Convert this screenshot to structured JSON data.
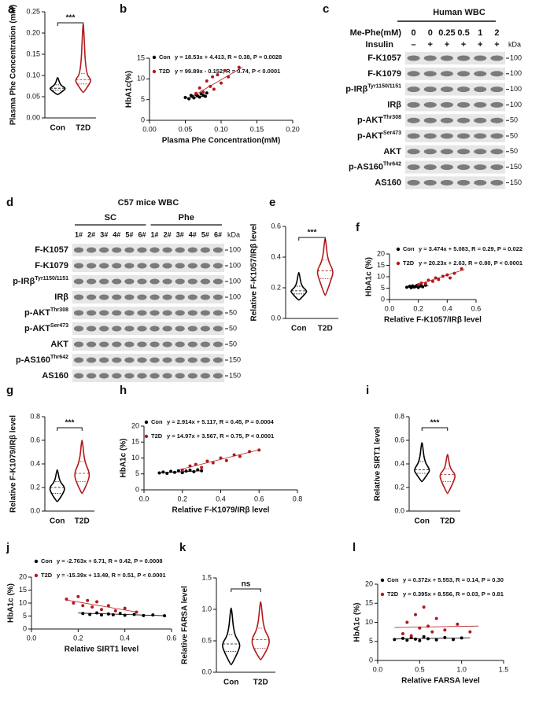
{
  "chart_data": [
    {
      "label": "a",
      "type": "violin",
      "ylabel": "Plasma Phe Concentration (mM)",
      "categories": [
        "Con",
        "T2D"
      ],
      "colors": [
        "#000000",
        "#b3191c"
      ],
      "annotation": "***",
      "ylim": [
        0,
        0.25
      ],
      "yticks": [
        {
          "value": 0,
          "label": "0.00"
        },
        {
          "value": 0.05,
          "label": "0.05"
        },
        {
          "value": 0.1,
          "label": "0.10"
        },
        {
          "value": 0.15,
          "label": "0.15"
        },
        {
          "value": 0.2,
          "label": "0.20"
        },
        {
          "value": 0.25,
          "label": "0.25"
        }
      ],
      "stats": [
        {
          "min": 0.055,
          "q1": 0.065,
          "median": 0.07,
          "q3": 0.078,
          "max": 0.095
        },
        {
          "min": 0.06,
          "q1": 0.08,
          "median": 0.09,
          "q3": 0.105,
          "max": 0.22
        }
      ]
    },
    {
      "label": "b",
      "type": "scatter",
      "xlabel": "Plasma Phe Concentration(mM)",
      "ylabel": "HbA1c(%)",
      "xlim": [
        0,
        0.2
      ],
      "xticks": [
        {
          "value": 0,
          "label": "0.00"
        },
        {
          "value": 0.05,
          "label": "0.05"
        },
        {
          "value": 0.1,
          "label": "0.10"
        },
        {
          "value": 0.15,
          "label": "0.15"
        },
        {
          "value": 0.2,
          "label": "0.20"
        }
      ],
      "ylim": [
        0,
        15
      ],
      "yticks": [
        0,
        5,
        10,
        15
      ],
      "series": [
        {
          "name": "Con",
          "color": "#000000",
          "equation": "y = 18.53x + 4.413, R = 0.38, P = 0.0028",
          "x": [
            0.05,
            0.055,
            0.058,
            0.06,
            0.062,
            0.065,
            0.067,
            0.07,
            0.072,
            0.075,
            0.078,
            0.08
          ],
          "y": [
            5.5,
            5.2,
            6.0,
            5.8,
            5.4,
            6.2,
            5.9,
            5.6,
            6.4,
            6.0,
            5.8,
            6.6
          ],
          "fit_x": [
            0.05,
            0.08
          ],
          "fit_y": [
            5.34,
            5.89
          ]
        },
        {
          "name": "T2D",
          "color": "#b3191c",
          "equation": "y = 99.89x - 0.152, R = 0.74, P < 0.0001",
          "x": [
            0.065,
            0.07,
            0.075,
            0.08,
            0.085,
            0.088,
            0.09,
            0.095,
            0.1,
            0.105,
            0.11,
            0.125
          ],
          "y": [
            6.5,
            7.8,
            6.8,
            9.5,
            8.2,
            10.5,
            7.5,
            11,
            9,
            12,
            10.5,
            12.8
          ],
          "fit_x": [
            0.06,
            0.13
          ],
          "fit_y": [
            5.8,
            12.8
          ]
        }
      ]
    },
    {
      "label": "e",
      "type": "violin",
      "ylabel": "Relative F-K1057/IRβ level",
      "categories": [
        "Con",
        "T2D"
      ],
      "colors": [
        "#000000",
        "#b3191c"
      ],
      "annotation": "***",
      "ylim": [
        0,
        0.6
      ],
      "yticks": [
        {
          "value": 0,
          "label": "0.0"
        },
        0.2,
        0.4,
        0.6
      ],
      "stats": [
        {
          "min": 0.12,
          "q1": 0.16,
          "median": 0.18,
          "q3": 0.21,
          "max": 0.3
        },
        {
          "min": 0.15,
          "q1": 0.26,
          "median": 0.31,
          "q3": 0.38,
          "max": 0.52
        }
      ]
    },
    {
      "label": "f",
      "type": "scatter",
      "xlabel": "Relative F-K1057/IRβ level",
      "ylabel": "HbA1c (%)",
      "xlim": [
        0,
        0.6
      ],
      "xticks": [
        {
          "value": 0,
          "label": "0.0"
        },
        0.2,
        0.4,
        0.6
      ],
      "ylim": [
        0,
        20
      ],
      "yticks": [
        0,
        5,
        10,
        15,
        20
      ],
      "series": [
        {
          "name": "Con",
          "color": "#000000",
          "equation": "y = 3.474x + 5.083, R = 0.29, P = 0.022",
          "x": [
            0.12,
            0.14,
            0.15,
            0.16,
            0.17,
            0.18,
            0.19,
            0.2,
            0.21,
            0.22,
            0.23,
            0.25
          ],
          "y": [
            5.4,
            5.8,
            5.2,
            6.0,
            5.5,
            5.7,
            6.2,
            5.3,
            5.9,
            6.1,
            5.6,
            6.3
          ],
          "fit_x": [
            0.12,
            0.27
          ],
          "fit_y": [
            5.5,
            6.0
          ]
        },
        {
          "name": "T2D",
          "color": "#b3191c",
          "equation": "y = 20.23x + 2.63, R = 0.80, P < 0.0001",
          "x": [
            0.2,
            0.22,
            0.25,
            0.27,
            0.3,
            0.32,
            0.34,
            0.37,
            0.4,
            0.42,
            0.45,
            0.5
          ],
          "y": [
            6.5,
            7.2,
            7.0,
            8.5,
            8.0,
            9.5,
            8.8,
            10.2,
            10.8,
            9.5,
            11.5,
            13.5
          ],
          "fit_x": [
            0.2,
            0.52
          ],
          "fit_y": [
            6.7,
            13.2
          ]
        }
      ]
    },
    {
      "label": "g",
      "type": "violin",
      "ylabel": "Relative F-K1079/IRβ level",
      "categories": [
        "Con",
        "T2D"
      ],
      "colors": [
        "#000000",
        "#b3191c"
      ],
      "annotation": "***",
      "ylim": [
        0,
        0.8
      ],
      "yticks": [
        {
          "value": 0,
          "label": "0.0"
        },
        0.2,
        0.4,
        0.6,
        0.8
      ],
      "stats": [
        {
          "min": 0.08,
          "q1": 0.15,
          "median": 0.2,
          "q3": 0.25,
          "max": 0.35
        },
        {
          "min": 0.15,
          "q1": 0.25,
          "median": 0.32,
          "q3": 0.42,
          "max": 0.6
        }
      ]
    },
    {
      "label": "h",
      "type": "scatter",
      "xlabel": "Relative F-K1079/IRβ level",
      "ylabel": "HbA1c (%)",
      "xlim": [
        0,
        0.8
      ],
      "xticks": [
        {
          "value": 0,
          "label": "0.0"
        },
        0.2,
        0.4,
        0.6,
        0.8
      ],
      "ylim": [
        0,
        20
      ],
      "yticks": [
        0,
        5,
        10,
        15,
        20
      ],
      "series": [
        {
          "name": "Con",
          "color": "#000000",
          "equation": "y = 2.914x + 5.117, R = 0.45, P = 0.0004",
          "x": [
            0.08,
            0.1,
            0.12,
            0.14,
            0.16,
            0.18,
            0.2,
            0.22,
            0.24,
            0.26,
            0.28,
            0.3
          ],
          "y": [
            5.3,
            5.6,
            5.2,
            5.8,
            5.5,
            6.0,
            5.4,
            5.9,
            6.2,
            5.7,
            6.3,
            6.0
          ],
          "fit_x": [
            0.08,
            0.3
          ],
          "fit_y": [
            5.35,
            5.99
          ]
        },
        {
          "name": "T2D",
          "color": "#b3191c",
          "equation": "y = 14.97x + 3.567, R = 0.75, P < 0.0001",
          "x": [
            0.2,
            0.24,
            0.27,
            0.3,
            0.33,
            0.36,
            0.4,
            0.43,
            0.47,
            0.5,
            0.55,
            0.6
          ],
          "y": [
            6.2,
            7.5,
            8,
            7,
            9,
            8.5,
            10,
            9.2,
            11,
            10.5,
            12,
            12.5
          ],
          "fit_x": [
            0.18,
            0.6
          ],
          "fit_y": [
            6.26,
            12.55
          ]
        }
      ]
    },
    {
      "label": "i",
      "type": "violin",
      "ylabel": "Relative SIRT1 level",
      "categories": [
        "Con",
        "T2D"
      ],
      "colors": [
        "#000000",
        "#b3191c"
      ],
      "annotation": "***",
      "ylim": [
        0,
        0.8
      ],
      "yticks": [
        {
          "value": 0,
          "label": "0.0"
        },
        0.2,
        0.4,
        0.6,
        0.8
      ],
      "stats": [
        {
          "min": 0.25,
          "q1": 0.32,
          "median": 0.35,
          "q3": 0.42,
          "max": 0.58
        },
        {
          "min": 0.15,
          "q1": 0.25,
          "median": 0.31,
          "q3": 0.36,
          "max": 0.48
        }
      ]
    },
    {
      "label": "j",
      "type": "scatter",
      "xlabel": "Relative SIRT1 level",
      "ylabel": "HbA1c (%)",
      "xlim": [
        0,
        0.6
      ],
      "xticks": [
        {
          "value": 0,
          "label": "0.0"
        },
        0.2,
        0.4,
        0.6
      ],
      "ylim": [
        0,
        20
      ],
      "yticks": [
        0,
        5,
        10,
        15,
        20
      ],
      "series": [
        {
          "name": "Con",
          "color": "#000000",
          "equation": "y = -2.763x + 6.71, R = 0.42, P = 0.0008",
          "x": [
            0.22,
            0.25,
            0.28,
            0.3,
            0.33,
            0.35,
            0.38,
            0.4,
            0.44,
            0.48,
            0.52,
            0.57
          ],
          "y": [
            6.0,
            5.6,
            6.2,
            5.4,
            5.8,
            5.5,
            6.0,
            5.3,
            5.6,
            5.2,
            5.4,
            5.1
          ],
          "fit_x": [
            0.2,
            0.57
          ],
          "fit_y": [
            6.16,
            5.14
          ]
        },
        {
          "name": "T2D",
          "color": "#b3191c",
          "equation": "y = -15.39x + 13.49, R = 0.51, P < 0.0001",
          "x": [
            0.15,
            0.18,
            0.2,
            0.22,
            0.24,
            0.26,
            0.28,
            0.3,
            0.33,
            0.36,
            0.4,
            0.45
          ],
          "y": [
            11.5,
            10,
            12.5,
            9,
            11,
            8.5,
            10.5,
            7.5,
            9,
            7,
            8,
            6.5
          ],
          "fit_x": [
            0.15,
            0.45
          ],
          "fit_y": [
            11.18,
            6.56
          ]
        }
      ]
    },
    {
      "label": "k",
      "type": "violin",
      "ylabel": "Relative FARSA level",
      "categories": [
        "Con",
        "T2D"
      ],
      "colors": [
        "#000000",
        "#b3191c"
      ],
      "annotation": "ns",
      "ylim": [
        0,
        1.5
      ],
      "yticks": [
        {
          "value": 0,
          "label": "0.0"
        },
        0.5,
        {
          "value": 1,
          "label": "1.0"
        },
        1.5
      ],
      "stats": [
        {
          "min": 0.12,
          "q1": 0.33,
          "median": 0.45,
          "q3": 0.6,
          "max": 1.02
        },
        {
          "min": 0.2,
          "q1": 0.38,
          "median": 0.52,
          "q3": 0.7,
          "max": 1.12
        }
      ]
    },
    {
      "label": "l",
      "type": "scatter",
      "xlabel": "Relative FARSA level",
      "ylabel": "HbA1c (%)",
      "xlim": [
        0,
        1.5
      ],
      "xticks": [
        {
          "value": 0,
          "label": "0.0"
        },
        0.5,
        {
          "value": 1,
          "label": "1.0"
        },
        1.5
      ],
      "ylim": [
        0,
        20
      ],
      "yticks": [
        0,
        5,
        10,
        15,
        20
      ],
      "series": [
        {
          "name": "Con",
          "color": "#000000",
          "equation": "y = 0.372x + 5.553, R = 0.14, P = 0.30",
          "x": [
            0.2,
            0.3,
            0.35,
            0.4,
            0.45,
            0.5,
            0.55,
            0.6,
            0.7,
            0.8,
            0.9,
            1.0
          ],
          "y": [
            5.5,
            5.8,
            5.3,
            6.0,
            5.6,
            5.2,
            6.2,
            5.7,
            5.4,
            6.0,
            5.5,
            5.9
          ],
          "fit_x": [
            0.2,
            1.1
          ],
          "fit_y": [
            5.63,
            5.96
          ]
        },
        {
          "name": "T2D",
          "color": "#b3191c",
          "equation": "y = 0.395x + 8.556, R = 0.03, P = 0.81",
          "x": [
            0.3,
            0.35,
            0.4,
            0.45,
            0.5,
            0.55,
            0.6,
            0.65,
            0.7,
            0.8,
            0.95,
            1.1
          ],
          "y": [
            7,
            10,
            6.5,
            12,
            8.5,
            14,
            9,
            7.5,
            11,
            8,
            9.5,
            7.5
          ],
          "fit_x": [
            0.2,
            1.2
          ],
          "fit_y": [
            8.64,
            9.03
          ]
        }
      ]
    }
  ],
  "blots": [
    {
      "label": "c",
      "title": "Human WBC",
      "dose_label": "Me-Phe(mM)",
      "doses": [
        "0",
        "0",
        "0.25",
        "0.5",
        "1",
        "2"
      ],
      "insulin_label": "Insulin",
      "insulin": [
        "–",
        "+",
        "+",
        "+",
        "+",
        "+"
      ],
      "kda_label": "kDa",
      "rows": [
        {
          "name": "F-K1057",
          "kda": "100"
        },
        {
          "name": "F-K1079",
          "kda": "100"
        },
        {
          "name": "p-IRβ",
          "sup": "Tyr1150/1151",
          "kda": "100"
        },
        {
          "name": "IRβ",
          "kda": "100"
        },
        {
          "name": "p-AKT",
          "sup": "Thr308",
          "kda": "50"
        },
        {
          "name": "p-AKT",
          "sup": "Ser473",
          "kda": "50"
        },
        {
          "name": "AKT",
          "kda": "50"
        },
        {
          "name": "p-AS160",
          "sup": "Thr642",
          "kda": "150"
        },
        {
          "name": "AS160",
          "kda": "150"
        }
      ]
    },
    {
      "label": "d",
      "title": "C57 mice WBC",
      "groups": [
        {
          "name": "SC",
          "lanes": [
            "1#",
            "2#",
            "3#",
            "4#",
            "5#",
            "6#"
          ]
        },
        {
          "name": "Phe",
          "lanes": [
            "1#",
            "2#",
            "3#",
            "4#",
            "5#",
            "6#"
          ]
        }
      ],
      "kda_label": "kDa",
      "rows": [
        {
          "name": "F-K1057",
          "kda": "100"
        },
        {
          "name": "F-K1079",
          "kda": "100"
        },
        {
          "name": "p-IRβ",
          "sup": "Tyr1150/1151",
          "kda": "100"
        },
        {
          "name": "IRβ",
          "kda": "100"
        },
        {
          "name": "p-AKT",
          "sup": "Thr308",
          "kda": "50"
        },
        {
          "name": "p-AKT",
          "sup": "Ser473",
          "kda": "50"
        },
        {
          "name": "AKT",
          "kda": "50"
        },
        {
          "name": "p-AS160",
          "sup": "Thr642",
          "kda": "150"
        },
        {
          "name": "AS160",
          "kda": "150"
        }
      ]
    }
  ]
}
